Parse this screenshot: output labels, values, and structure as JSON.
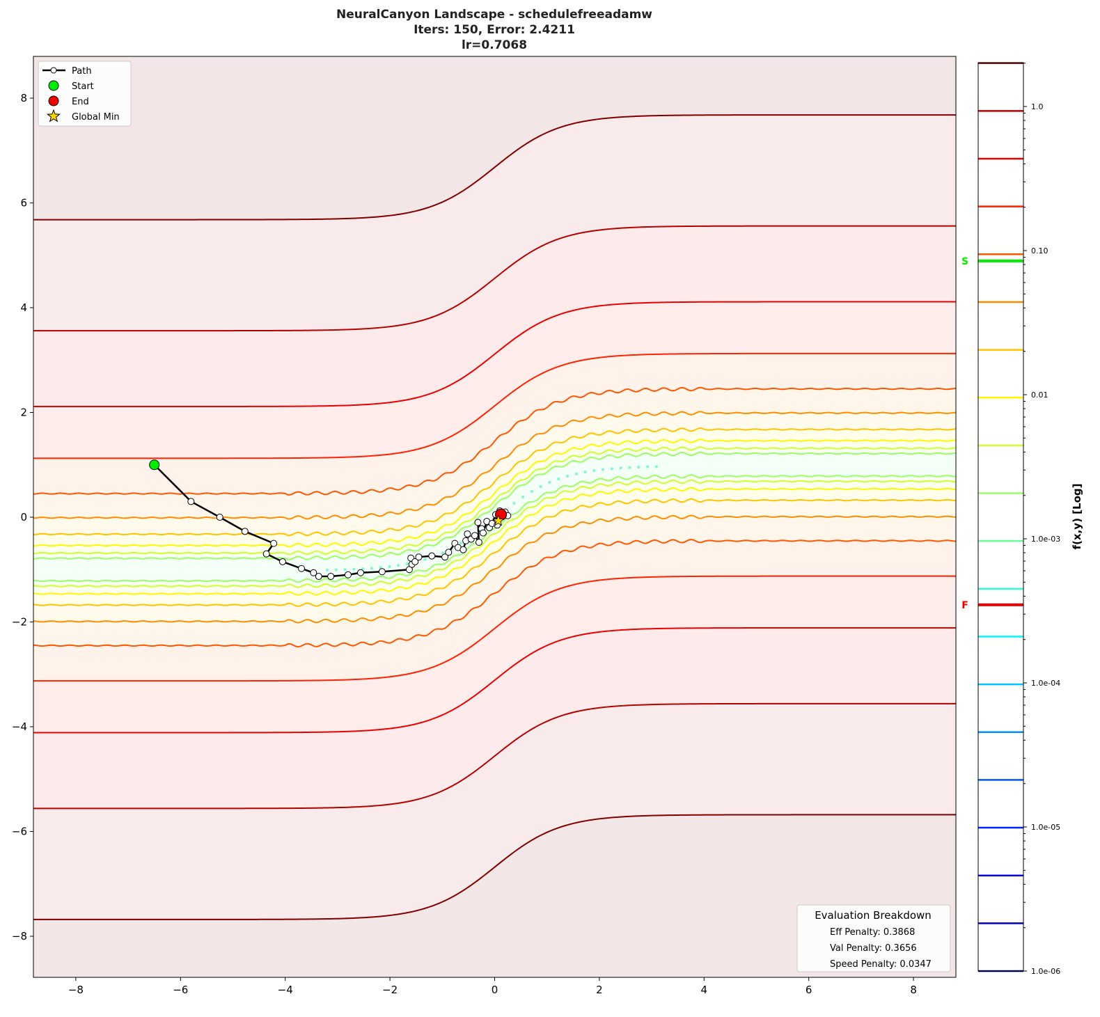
{
  "chart_data": {
    "type": "contour",
    "title": [
      "NeuralCanyon Landscape - schedulefreeadamw",
      "Iters: 150, Error: 2.4211",
      "lr=0.7068"
    ],
    "xlim": [
      -8.8,
      8.8
    ],
    "ylim": [
      -8.8,
      8.8
    ],
    "x_ticks": [
      "−8",
      "−6",
      "−4",
      "−2",
      "0",
      "2",
      "4",
      "6",
      "8"
    ],
    "x_tick_values": [
      -8,
      -6,
      -4,
      -2,
      0,
      2,
      4,
      6,
      8
    ],
    "y_ticks": [
      "−8",
      "−6",
      "−4",
      "−2",
      "0",
      "2",
      "4",
      "6",
      "8"
    ],
    "y_tick_values": [
      -8,
      -6,
      -4,
      -2,
      0,
      2,
      4,
      6,
      8
    ],
    "colormap": "jet",
    "contour_levels": {
      "min": 1e-06,
      "max": 2.0,
      "count": 20,
      "scale": "log"
    },
    "colorbar": {
      "label": "f(x,y) [Log]",
      "scale": "log",
      "range": [
        1e-06,
        2.0
      ],
      "ticks": [
        "1.0",
        "0.10",
        "0.01",
        "1.0e-03",
        "1.0e-04",
        "1.0e-05",
        "1.0e-06"
      ],
      "tick_values": [
        1.0,
        0.1,
        0.01,
        0.001,
        0.0001,
        1e-05,
        1e-06
      ],
      "markers": [
        {
          "label": "S",
          "value": 0.0847,
          "color": "#00ee00"
        },
        {
          "label": "F",
          "value": 0.000348,
          "color": "#ee0000"
        }
      ]
    },
    "path": {
      "points": [
        [
          -6.5,
          1.0
        ],
        [
          -5.8,
          0.3
        ],
        [
          -5.25,
          0.0
        ],
        [
          -4.77,
          -0.27
        ],
        [
          -4.22,
          -0.5
        ],
        [
          -4.36,
          -0.7
        ],
        [
          -4.05,
          -0.85
        ],
        [
          -3.69,
          -0.98
        ],
        [
          -3.46,
          -1.06
        ],
        [
          -3.36,
          -1.13
        ],
        [
          -3.13,
          -1.13
        ],
        [
          -2.8,
          -1.1
        ],
        [
          -2.56,
          -1.06
        ],
        [
          -2.15,
          -1.04
        ],
        [
          -1.63,
          -1.0
        ],
        [
          -1.58,
          -0.9
        ],
        [
          -1.6,
          -0.78
        ],
        [
          -1.52,
          -0.85
        ],
        [
          -1.45,
          -0.76
        ],
        [
          -1.2,
          -0.74
        ],
        [
          -0.95,
          -0.76
        ],
        [
          -0.88,
          -0.67
        ],
        [
          -0.76,
          -0.5
        ],
        [
          -0.7,
          -0.58
        ],
        [
          -0.6,
          -0.62
        ],
        [
          -0.55,
          -0.45
        ],
        [
          -0.52,
          -0.32
        ],
        [
          -0.45,
          -0.42
        ],
        [
          -0.38,
          -0.35
        ],
        [
          -0.3,
          -0.48
        ],
        [
          -0.32,
          -0.1
        ],
        [
          -0.25,
          -0.22
        ],
        [
          -0.22,
          -0.3
        ],
        [
          -0.15,
          -0.08
        ],
        [
          -0.1,
          -0.2
        ],
        [
          -0.05,
          -0.12
        ],
        [
          0.02,
          0.05
        ],
        [
          0.05,
          -0.15
        ],
        [
          0.1,
          0.12
        ],
        [
          0.2,
          0.1
        ],
        [
          0.25,
          0.03
        ],
        [
          0.12,
          0.05
        ]
      ],
      "color": "#000000"
    },
    "start": {
      "x": -6.5,
      "y": 1.0,
      "color": "#00ee00"
    },
    "end": {
      "x": 0.12,
      "y": 0.05,
      "color": "#ee0000"
    },
    "global_min": {
      "x": 0.07,
      "y": -0.07,
      "color": "#ffd700"
    },
    "legend": {
      "placement": "upper-left",
      "entries": [
        "Path",
        "Start",
        "End",
        "Global Min"
      ]
    },
    "evaluation": {
      "title": "Evaluation Breakdown",
      "lines": [
        "Eff Penalty: 0.3868",
        "Val Penalty: 0.3656",
        "Speed Penalty: 0.0347"
      ],
      "placement": "lower-right"
    }
  }
}
